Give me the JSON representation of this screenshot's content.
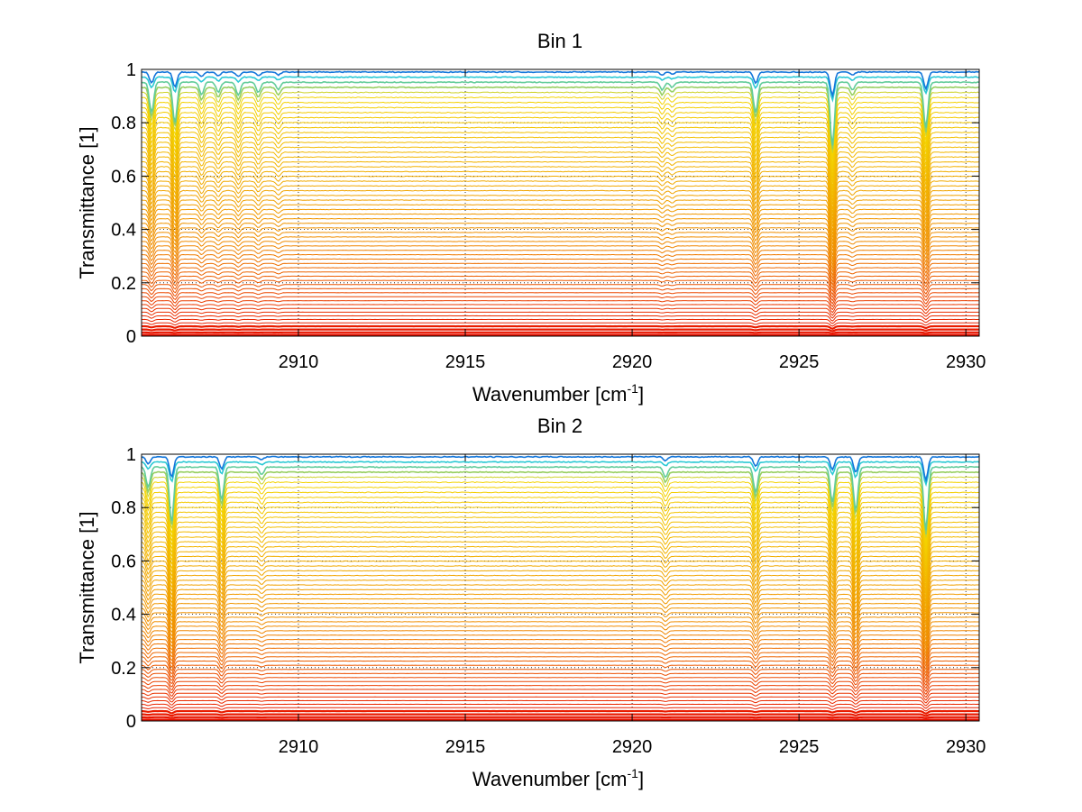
{
  "chart_data": [
    {
      "type": "line",
      "title": "Bin 1",
      "xlabel_main": "Wavenumber [cm",
      "xlabel_sup": "-1",
      "xlabel_end": "]",
      "ylabel": "Transmittance [1]",
      "xlim": [
        2905.3,
        2930.4
      ],
      "ylim": [
        0,
        1
      ],
      "xticks": [
        2910,
        2915,
        2920,
        2925,
        2930
      ],
      "yticks": [
        0,
        0.2,
        0.4,
        0.6,
        0.8,
        1
      ],
      "grid": "dotted",
      "series_count": 60,
      "series_levels_description_from_top": "about 60 spectra spanning transmittance baselines from about 0.99 down to about 0.005, colored from blue/cyan (near 1) through yellow and orange to red (near 0)",
      "absorption_lines": [
        {
          "x": 2905.6,
          "rel_depth": 0.12
        },
        {
          "x": 2906.3,
          "rel_depth": 0.16
        },
        {
          "x": 2907.1,
          "rel_depth": 0.05
        },
        {
          "x": 2907.6,
          "rel_depth": 0.04
        },
        {
          "x": 2908.2,
          "rel_depth": 0.05
        },
        {
          "x": 2908.8,
          "rel_depth": 0.04
        },
        {
          "x": 2909.4,
          "rel_depth": 0.03
        },
        {
          "x": 2920.9,
          "rel_depth": 0.03
        },
        {
          "x": 2921.2,
          "rel_depth": 0.02
        },
        {
          "x": 2923.7,
          "rel_depth": 0.12
        },
        {
          "x": 2926.0,
          "rel_depth": 0.25
        },
        {
          "x": 2926.6,
          "rel_depth": 0.03
        },
        {
          "x": 2928.8,
          "rel_depth": 0.18
        }
      ]
    },
    {
      "type": "line",
      "title": "Bin 2",
      "xlabel_main": "Wavenumber [cm",
      "xlabel_sup": "-1",
      "xlabel_end": "]",
      "ylabel": "Transmittance [1]",
      "xlim": [
        2905.3,
        2930.4
      ],
      "ylim": [
        0,
        1
      ],
      "xticks": [
        2910,
        2915,
        2920,
        2925,
        2930
      ],
      "yticks": [
        0,
        0.2,
        0.4,
        0.6,
        0.8,
        1
      ],
      "grid": "dotted",
      "series_count": 60,
      "series_levels_description_from_top": "about 60 spectra spanning transmittance baselines from about 0.99 down to about 0.005, colored from blue/cyan (near 1) through yellow and orange to red (near 0)",
      "absorption_lines": [
        {
          "x": 2905.5,
          "rel_depth": 0.08
        },
        {
          "x": 2906.2,
          "rel_depth": 0.22
        },
        {
          "x": 2907.7,
          "rel_depth": 0.13
        },
        {
          "x": 2908.9,
          "rel_depth": 0.03
        },
        {
          "x": 2921.0,
          "rel_depth": 0.04
        },
        {
          "x": 2923.7,
          "rel_depth": 0.1
        },
        {
          "x": 2926.0,
          "rel_depth": 0.14
        },
        {
          "x": 2926.7,
          "rel_depth": 0.17
        },
        {
          "x": 2928.8,
          "rel_depth": 0.25
        }
      ]
    }
  ],
  "colors": {
    "high": "#0b3fd6",
    "mid_high": "#20c8e0",
    "mid": "#f3d400",
    "mid_low": "#f08a00",
    "low": "#e81000",
    "grid": "#000000"
  }
}
